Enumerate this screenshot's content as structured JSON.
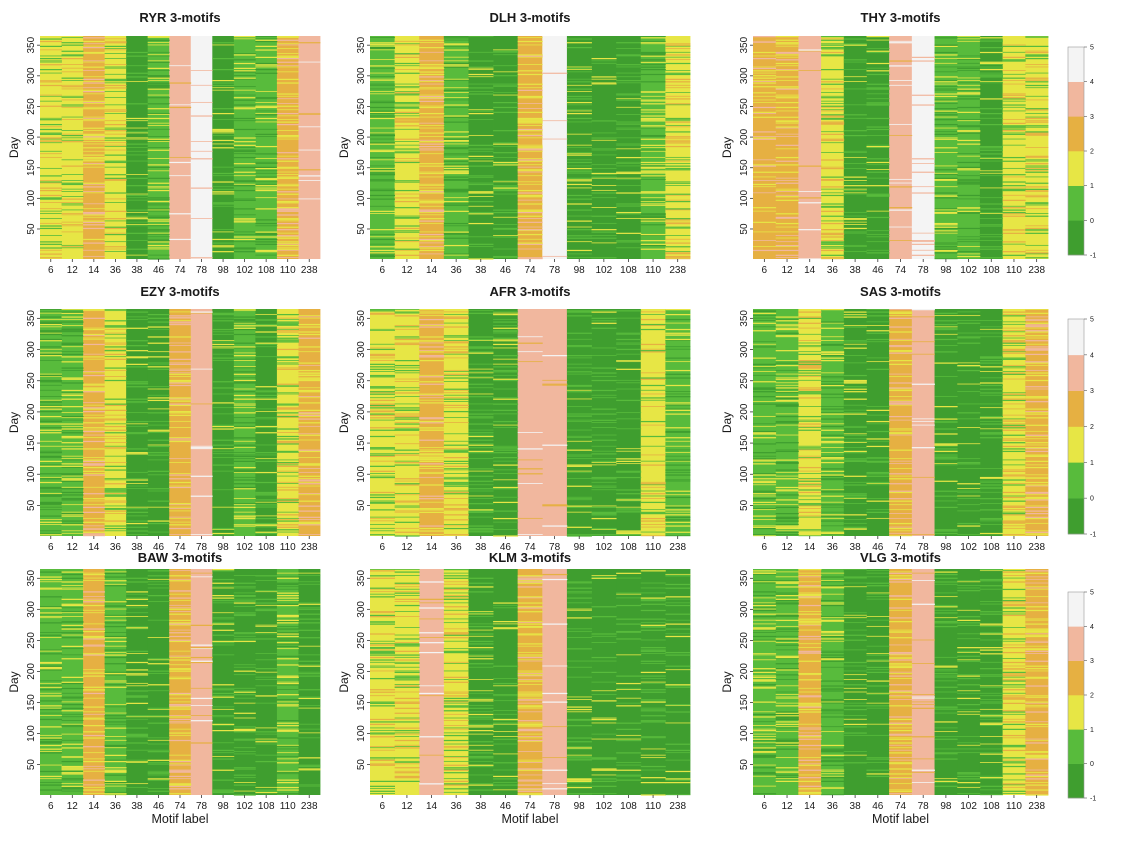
{
  "chart_data": {
    "type": "heatmap",
    "title": "",
    "xlabel": "Motif label",
    "ylabel": "Day",
    "x_categories": [
      "6",
      "12",
      "14",
      "36",
      "38",
      "46",
      "74",
      "78",
      "98",
      "102",
      "108",
      "110",
      "238"
    ],
    "y_ticks": [
      50,
      100,
      150,
      200,
      250,
      300,
      350
    ],
    "y_range": [
      1,
      365
    ],
    "colorbar": {
      "ticks": [
        -1,
        0,
        1,
        2,
        3,
        4,
        5
      ],
      "colors": [
        "#3f9e2f",
        "#58bb3c",
        "#e7e645",
        "#e6b042",
        "#f1b79e",
        "#f4f4f4"
      ]
    },
    "panels": [
      {
        "title": "RYR  3-motifs",
        "dominant_state": [
          1,
          1,
          2,
          1,
          -1,
          0,
          3,
          4,
          -1,
          0,
          0,
          2,
          3
        ]
      },
      {
        "title": "DLH  3-motifs",
        "dominant_state": [
          0,
          1,
          2,
          0,
          -1,
          -1,
          2,
          4,
          -1,
          -1,
          -1,
          0,
          1
        ]
      },
      {
        "title": "THY  3-motifs",
        "dominant_state": [
          2,
          2,
          3,
          1,
          -1,
          -1,
          3,
          4,
          0,
          0,
          -1,
          1,
          1
        ]
      },
      {
        "title": "EZY  3-motifs",
        "dominant_state": [
          0,
          0,
          2,
          1,
          -1,
          -1,
          2,
          3,
          -1,
          0,
          -1,
          1,
          2
        ]
      },
      {
        "title": "AFR  3-motifs",
        "dominant_state": [
          1,
          1,
          2,
          1,
          -1,
          -1,
          3,
          3,
          -1,
          -1,
          -1,
          1,
          0
        ]
      },
      {
        "title": "SAS  3-motifs",
        "dominant_state": [
          0,
          0,
          1,
          0,
          -1,
          -1,
          2,
          3,
          -1,
          -1,
          -1,
          1,
          2
        ]
      },
      {
        "title": "BAW  3-motifs",
        "dominant_state": [
          0,
          0,
          2,
          0,
          -1,
          -1,
          2,
          3,
          -1,
          -1,
          -1,
          0,
          -1
        ]
      },
      {
        "title": "KLM  3-motifs",
        "dominant_state": [
          1,
          1,
          3,
          1,
          -1,
          -1,
          2,
          3,
          -1,
          -1,
          -1,
          -1,
          -1
        ]
      },
      {
        "title": "VLG  3-motifs",
        "dominant_state": [
          0,
          0,
          2,
          0,
          -1,
          -1,
          2,
          3,
          -1,
          -1,
          -1,
          1,
          2
        ]
      }
    ]
  }
}
